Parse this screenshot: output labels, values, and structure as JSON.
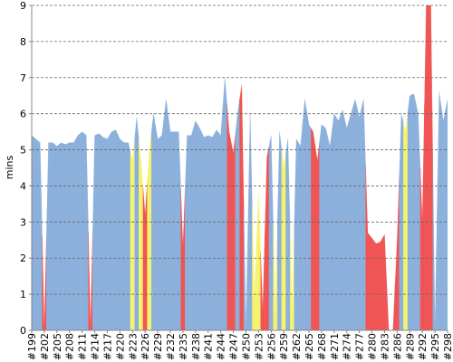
{
  "chart_data": {
    "type": "area",
    "ylabel": "mins",
    "ylim": [
      0,
      9
    ],
    "yticks": [
      0,
      1,
      2,
      3,
      4,
      5,
      6,
      7,
      8,
      9
    ],
    "grid": true,
    "categories": [
      "#199",
      null,
      null,
      "#202",
      null,
      null,
      "#205",
      null,
      null,
      "#208",
      null,
      null,
      "#211",
      null,
      null,
      "#214",
      null,
      null,
      "#217",
      null,
      null,
      "#220",
      null,
      null,
      "#223",
      null,
      null,
      "#226",
      null,
      null,
      "#229",
      null,
      null,
      "#232",
      null,
      null,
      "#235",
      null,
      null,
      "#238",
      null,
      null,
      "#241",
      null,
      null,
      "#244",
      null,
      null,
      "#247",
      null,
      null,
      "#250",
      null,
      null,
      "#253",
      null,
      null,
      "#256",
      null,
      null,
      "#259",
      null,
      null,
      "#262",
      null,
      null,
      "#265",
      null,
      null,
      "#268",
      null,
      null,
      "#271",
      null,
      null,
      "#274",
      null,
      null,
      "#277",
      null,
      null,
      "#280",
      null,
      null,
      "#283",
      null,
      null,
      "#286",
      null,
      null,
      "#289",
      null,
      null,
      "#292",
      null,
      null,
      "#295",
      null,
      null,
      "#298"
    ],
    "values": [
      5.4,
      5.3,
      5.2,
      0,
      5.2,
      5.2,
      5.1,
      5.2,
      5.15,
      5.2,
      5.2,
      5.4,
      5.5,
      5.4,
      0,
      5.4,
      5.45,
      5.35,
      5.3,
      5.5,
      5.55,
      5.3,
      5.2,
      5.2,
      4.7,
      5.9,
      4.7,
      3.2,
      5,
      6,
      5.3,
      5.4,
      6.4,
      5.5,
      5.5,
      5.5,
      2.3,
      5.4,
      5.4,
      5.8,
      5.6,
      5.35,
      5.4,
      5.35,
      5.55,
      5.4,
      7,
      5.5,
      4.9,
      6,
      6.8,
      0,
      6,
      0.9,
      3.8,
      0.5,
      4.8,
      5.4,
      0.5,
      5.5,
      4.5,
      5.3,
      0.5,
      5.3,
      5.1,
      6.4,
      5.7,
      5.5,
      4.7,
      5.7,
      5.6,
      5.1,
      6,
      5.8,
      6.1,
      5.6,
      6,
      6.4,
      5.9,
      6.4,
      2.7,
      2.55,
      2.4,
      2.45,
      2.65,
      0,
      0,
      2.5,
      6,
      5.5,
      6.5,
      6.55,
      6,
      3,
      9.5,
      9.2,
      0,
      6.6,
      5.8,
      6.4
    ],
    "point_colors": [
      "#8cb0dc",
      "#8cb0dc",
      "#8cb0dc",
      "#f05454",
      "#8cb0dc",
      "#8cb0dc",
      "#8cb0dc",
      "#8cb0dc",
      "#8cb0dc",
      "#8cb0dc",
      "#8cb0dc",
      "#8cb0dc",
      "#8cb0dc",
      "#8cb0dc",
      "#f05454",
      "#8cb0dc",
      "#8cb0dc",
      "#8cb0dc",
      "#8cb0dc",
      "#8cb0dc",
      "#8cb0dc",
      "#8cb0dc",
      "#8cb0dc",
      "#8cb0dc",
      "#f5f36e",
      "#8cb0dc",
      "#f5f36e",
      "#f05454",
      "#f5f36e",
      "#8cb0dc",
      "#8cb0dc",
      "#8cb0dc",
      "#8cb0dc",
      "#8cb0dc",
      "#8cb0dc",
      "#8cb0dc",
      "#f05454",
      "#8cb0dc",
      "#8cb0dc",
      "#8cb0dc",
      "#8cb0dc",
      "#8cb0dc",
      "#8cb0dc",
      "#8cb0dc",
      "#8cb0dc",
      "#8cb0dc",
      "#8cb0dc",
      "#f05454",
      "#f05454",
      "#8cb0dc",
      "#f05454",
      "#8cb0dc",
      "#8cb0dc",
      "#f5f36e",
      "#f5f36e",
      "#f05454",
      "#f05454",
      "#8cb0dc",
      "#f5f36e",
      "#8cb0dc",
      "#f5f36e",
      "#8cb0dc",
      "#f5f36e",
      "#8cb0dc",
      "#8cb0dc",
      "#8cb0dc",
      "#8cb0dc",
      "#f05454",
      "#f05454",
      "#8cb0dc",
      "#8cb0dc",
      "#8cb0dc",
      "#8cb0dc",
      "#8cb0dc",
      "#8cb0dc",
      "#8cb0dc",
      "#8cb0dc",
      "#8cb0dc",
      "#8cb0dc",
      "#8cb0dc",
      "#f05454",
      "#f05454",
      "#f05454",
      "#f05454",
      "#f05454",
      "#f05454",
      "#f05454",
      "#f05454",
      "#8cb0dc",
      "#f5f36e",
      "#8cb0dc",
      "#8cb0dc",
      "#8cb0dc",
      "#f05454",
      "#f05454",
      "#f05454",
      "#8cb0dc",
      "#8cb0dc",
      "#8cb0dc",
      "#8cb0dc"
    ]
  }
}
